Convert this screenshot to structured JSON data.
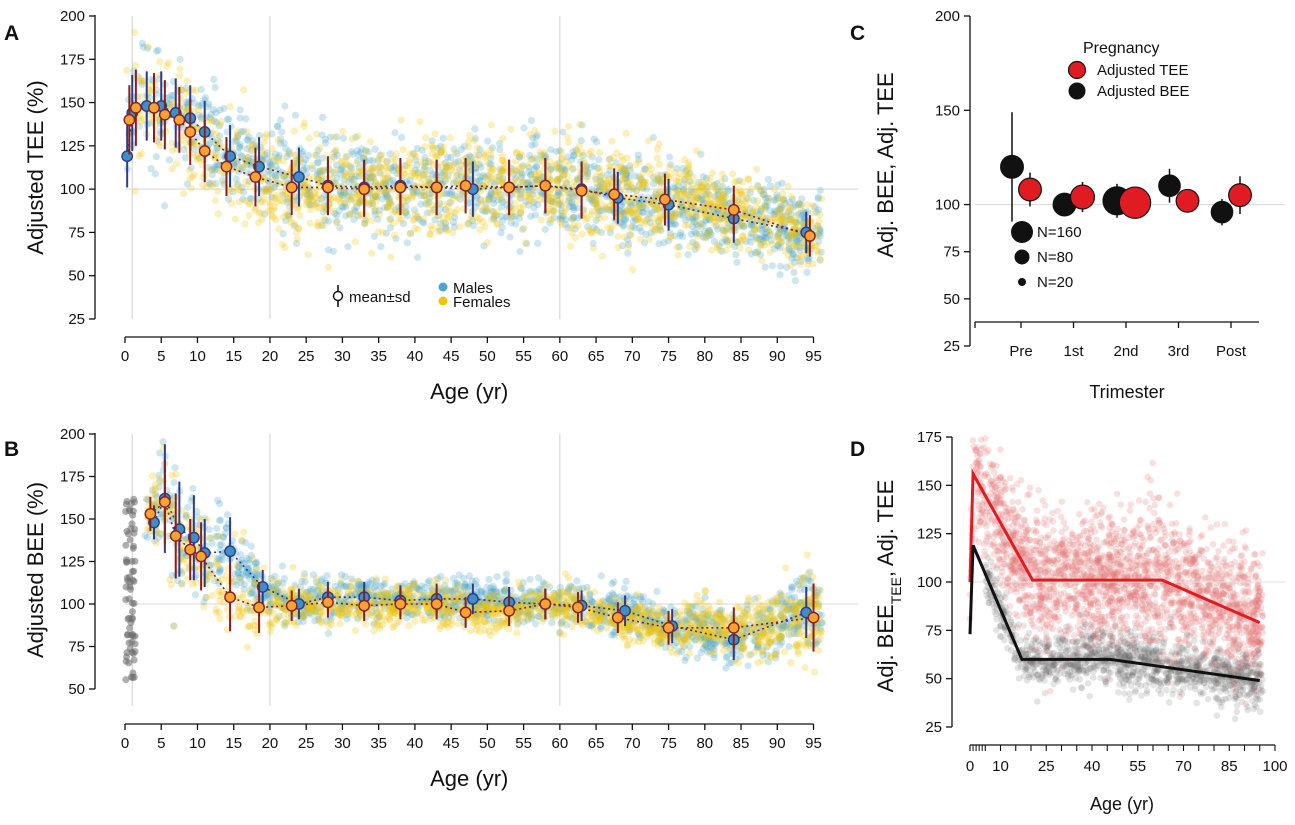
{
  "colors": {
    "males": "#4da6c8",
    "females": "#f2c40f",
    "male_marker": "#3f8fc7",
    "female_marker": "#f7a334",
    "tee_red": "#e11b22",
    "bee_black": "#111111",
    "errorbar_male": "#2e3a8c",
    "errorbar_female": "#8a1e1e",
    "grey_points": "#6b6b6b",
    "red_points": "#e57373"
  },
  "chart_data": [
    {
      "panel": "A",
      "type": "scatter",
      "xlabel": "Age (yr)",
      "ylabel": "Adjusted TEE (%)",
      "xlim": [
        0,
        97
      ],
      "ylim": [
        25,
        200
      ],
      "xticks": [
        "0",
        "5",
        "10",
        "15",
        "20",
        "25",
        "30",
        "35",
        "40",
        "45",
        "50",
        "55",
        "60",
        "65",
        "70",
        "75",
        "80",
        "85",
        "90",
        "95"
      ],
      "yticks": [
        "25",
        "50",
        "75",
        "100",
        "125",
        "150",
        "175",
        "200"
      ],
      "reference_lines": {
        "vertical": [
          1,
          20,
          60
        ],
        "horizontal": [
          100
        ]
      },
      "legend": {
        "mean_sd": "mean±sd",
        "males": "Males",
        "females": "Females",
        "placement": "bottom-center"
      },
      "series": [
        {
          "name": "Males",
          "x": [
            0.3,
            1,
            3,
            5,
            7,
            9,
            11,
            14.5,
            18.5,
            24,
            28,
            33,
            38,
            43,
            48,
            53,
            58,
            63,
            68,
            75,
            84,
            94
          ],
          "y": [
            119,
            144,
            148,
            148,
            144,
            141,
            133,
            119,
            113,
            107,
            102,
            101,
            102,
            101,
            100,
            101,
            102,
            100,
            95,
            91,
            83,
            75
          ],
          "sd": [
            18,
            22,
            20,
            20,
            20,
            19,
            18,
            18,
            17,
            17,
            17,
            16,
            16,
            16,
            16,
            16,
            16,
            16,
            15,
            15,
            14,
            12
          ]
        },
        {
          "name": "Females",
          "x": [
            0.6,
            1.5,
            4,
            5.5,
            7.5,
            9,
            11,
            14,
            18,
            23,
            28,
            33,
            38,
            43,
            47,
            53,
            58,
            63,
            67.5,
            74.5,
            84,
            94.5
          ],
          "y": [
            140,
            147,
            147,
            143,
            140,
            133,
            122,
            113,
            107,
            101,
            101,
            100,
            101,
            101,
            102,
            101,
            102,
            99,
            97,
            94,
            88,
            73
          ],
          "sd": [
            20,
            22,
            20,
            20,
            19,
            19,
            18,
            17,
            17,
            16,
            16,
            16,
            16,
            16,
            16,
            16,
            16,
            16,
            15,
            15,
            14,
            12
          ]
        }
      ]
    },
    {
      "panel": "B",
      "type": "scatter",
      "xlabel": "Age (yr)",
      "ylabel": "Adjusted BEE (%)",
      "xlim": [
        0,
        97
      ],
      "ylim": [
        40,
        200
      ],
      "xticks": [
        "0",
        "5",
        "10",
        "15",
        "20",
        "25",
        "30",
        "35",
        "40",
        "45",
        "50",
        "55",
        "60",
        "65",
        "70",
        "75",
        "80",
        "85",
        "90",
        "95"
      ],
      "yticks": [
        "50",
        "75",
        "100",
        "125",
        "150",
        "175",
        "200"
      ],
      "reference_lines": {
        "vertical": [
          1,
          20,
          60
        ],
        "horizontal": [
          100
        ]
      },
      "series": [
        {
          "name": "Males",
          "x": [
            4,
            5.5,
            7.5,
            9.5,
            11,
            14.5,
            19,
            24,
            28,
            33,
            38,
            43,
            48,
            53,
            58,
            63,
            69,
            75.5,
            84,
            94
          ],
          "y": [
            148,
            162,
            144,
            139,
            130,
            131,
            110,
            100,
            104,
            104,
            102,
            103,
            103,
            101,
            100,
            99,
            96,
            87,
            79,
            95
          ],
          "sd": [
            10,
            32,
            28,
            25,
            20,
            20,
            10,
            9,
            9,
            9,
            9,
            9,
            9,
            9,
            9,
            9,
            9,
            10,
            12,
            15
          ]
        },
        {
          "name": "Females",
          "x": [
            3.5,
            5.5,
            7,
            9,
            10.5,
            14.5,
            18.5,
            23,
            28,
            33,
            38,
            43,
            47,
            53,
            58,
            62.5,
            68,
            75,
            84,
            95
          ],
          "y": [
            153,
            160,
            140,
            132,
            128,
            104,
            98,
            99,
            101,
            99,
            100,
            100,
            95,
            96,
            100,
            98,
            92,
            86,
            86,
            92
          ],
          "sd": [
            10,
            25,
            25,
            18,
            20,
            20,
            15,
            9,
            9,
            9,
            9,
            9,
            9,
            9,
            9,
            9,
            9,
            10,
            12,
            20
          ]
        }
      ]
    },
    {
      "panel": "C",
      "type": "scatter",
      "xlabel": "Trimester",
      "ylabel": "Adj. BEE, Adj. TEE",
      "categories": [
        "Pre",
        "1st",
        "2nd",
        "3rd",
        "Post"
      ],
      "ylim": [
        25,
        200
      ],
      "yticks": [
        "25",
        "50",
        "75",
        "100",
        "150",
        "200"
      ],
      "reference_lines": {
        "horizontal": [
          100
        ]
      },
      "legend": {
        "title": "Pregnancy",
        "tee": "Adjusted TEE",
        "bee": "Adjusted BEE",
        "size_labels": [
          "N=160",
          "N=80",
          "N=20"
        ]
      },
      "series": [
        {
          "name": "Adjusted BEE",
          "values": [
            120,
            100,
            102,
            110,
            96
          ],
          "sd": [
            29,
            6,
            9,
            9,
            7
          ],
          "n": [
            60,
            60,
            110,
            50,
            50
          ]
        },
        {
          "name": "Adjusted TEE",
          "values": [
            108,
            104,
            101,
            102,
            105
          ],
          "sd": [
            9,
            8,
            7,
            6,
            10
          ],
          "n": [
            60,
            70,
            150,
            60,
            60
          ]
        }
      ]
    },
    {
      "panel": "D",
      "type": "line",
      "xlabel": "Age (yr)",
      "ylabel": "Adj. BEE_TEE, Adj. TEE",
      "xlim": [
        0,
        100
      ],
      "ylim": [
        25,
        175
      ],
      "xticks": [
        "0",
        "10",
        "25",
        "40",
        "55",
        "70",
        "85",
        "100"
      ],
      "yticks": [
        "25",
        "50",
        "75",
        "100",
        "125",
        "150",
        "175"
      ],
      "series": [
        {
          "name": "Adj. TEE",
          "x": [
            0,
            1,
            20.5,
            63,
            95
          ],
          "y": [
            100,
            156,
            101,
            101,
            79
          ]
        },
        {
          "name": "Adj. BEE_TEE",
          "x": [
            0,
            1,
            17,
            46,
            95
          ],
          "y": [
            73,
            119,
            60,
            60,
            49
          ]
        }
      ]
    }
  ]
}
